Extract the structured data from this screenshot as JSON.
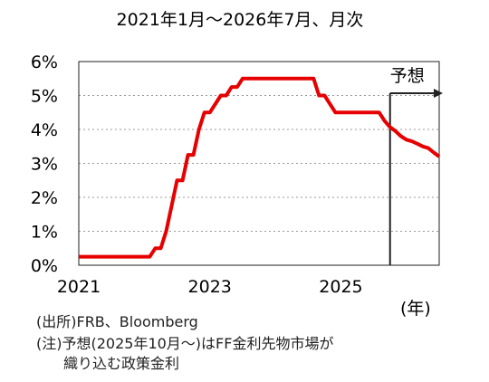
{
  "chart_data": {
    "type": "line",
    "title": "2021年1月～2026年7月、月次",
    "xlabel": "(年)",
    "ylabel": "",
    "x_ticks": [
      "2021",
      "2023",
      "2025"
    ],
    "y_ticks": [
      "0%",
      "1%",
      "2%",
      "3%",
      "4%",
      "5%",
      "6%"
    ],
    "xlim": [
      "2021-01",
      "2026-07"
    ],
    "ylim": [
      0,
      6
    ],
    "grid": "horizontal dotted",
    "series": [
      {
        "color": "#e60000",
        "x": [
          "2021-01",
          "2021-02",
          "2021-03",
          "2021-04",
          "2021-05",
          "2021-06",
          "2021-07",
          "2021-08",
          "2021-09",
          "2021-10",
          "2021-11",
          "2021-12",
          "2022-01",
          "2022-02",
          "2022-03",
          "2022-04",
          "2022-05",
          "2022-06",
          "2022-07",
          "2022-08",
          "2022-09",
          "2022-10",
          "2022-11",
          "2022-12",
          "2023-01",
          "2023-02",
          "2023-03",
          "2023-04",
          "2023-05",
          "2023-06",
          "2023-07",
          "2023-08",
          "2023-09",
          "2023-10",
          "2023-11",
          "2023-12",
          "2024-01",
          "2024-02",
          "2024-03",
          "2024-04",
          "2024-05",
          "2024-06",
          "2024-07",
          "2024-08",
          "2024-09",
          "2024-10",
          "2024-11",
          "2024-12",
          "2025-01",
          "2025-02",
          "2025-03",
          "2025-04",
          "2025-05",
          "2025-06",
          "2025-07",
          "2025-08",
          "2025-09",
          "2025-10",
          "2025-11",
          "2025-12",
          "2026-01",
          "2026-02",
          "2026-03",
          "2026-04",
          "2026-05",
          "2026-06",
          "2026-07"
        ],
        "y": [
          0.25,
          0.25,
          0.25,
          0.25,
          0.25,
          0.25,
          0.25,
          0.25,
          0.25,
          0.25,
          0.25,
          0.25,
          0.25,
          0.25,
          0.5,
          0.5,
          1.0,
          1.75,
          2.5,
          2.5,
          3.25,
          3.25,
          4.0,
          4.5,
          4.5,
          4.75,
          5.0,
          5.0,
          5.25,
          5.25,
          5.5,
          5.5,
          5.5,
          5.5,
          5.5,
          5.5,
          5.5,
          5.5,
          5.5,
          5.5,
          5.5,
          5.5,
          5.5,
          5.5,
          5.0,
          5.0,
          4.75,
          4.5,
          4.5,
          4.5,
          4.5,
          4.5,
          4.5,
          4.5,
          4.5,
          4.5,
          4.25,
          4.07,
          3.95,
          3.8,
          3.7,
          3.65,
          3.58,
          3.5,
          3.45,
          3.32,
          3.2
        ]
      }
    ],
    "annotation": {
      "label": "予想",
      "start": "2025-10"
    }
  },
  "notes": {
    "source": "(出所)FRB、Bloomberg",
    "note_line1": "(注)予想(2025年10月～)はFF金利先物市場が",
    "note_line2": "織り込む政策金利"
  }
}
